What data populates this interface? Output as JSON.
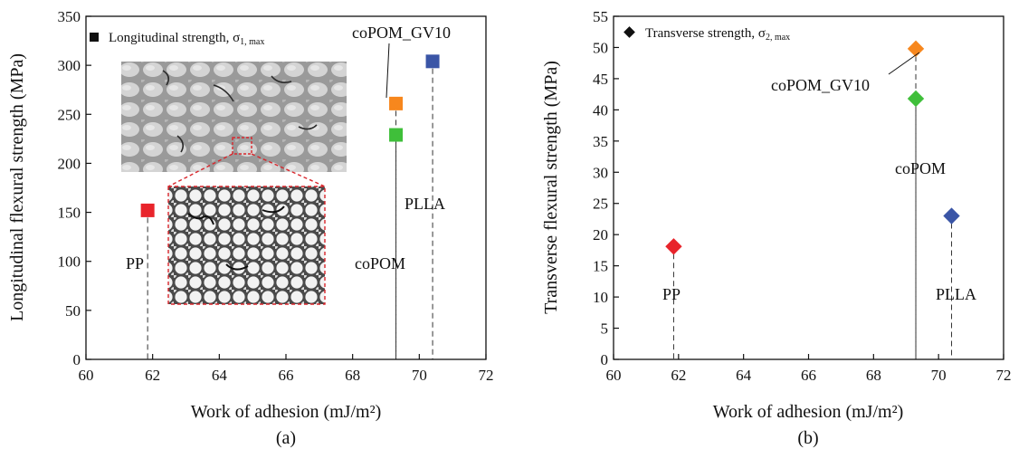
{
  "chart_data": [
    {
      "type": "scatter",
      "caption": "(a)",
      "xlabel": "Work of adhesion (mJ/m²)",
      "ylabel": "Longitudinal flexural strength (MPa)",
      "xlim": [
        60,
        72
      ],
      "ylim": [
        0,
        350
      ],
      "xticks": [
        60,
        62,
        64,
        66,
        68,
        70,
        72
      ],
      "yticks": [
        0,
        50,
        100,
        150,
        200,
        250,
        300,
        350
      ],
      "legend": {
        "label": "Longitudinal strength, σ",
        "sub": "1, max",
        "placement": "top-left"
      },
      "marker": "square",
      "points": [
        {
          "name": "PP",
          "x": 61.85,
          "y": 152,
          "color": "#e8242b"
        },
        {
          "name": "coPOM",
          "x": 69.3,
          "y": 229,
          "color": "#3fbf3a"
        },
        {
          "name": "coPOM_GV10",
          "x": 69.3,
          "y": 261,
          "color": "#f7871d"
        },
        {
          "name": "PLLA",
          "x": 70.4,
          "y": 304,
          "color": "#3a55a6"
        }
      ],
      "annotations": [
        "PP",
        "coPOM",
        "coPOM_GV10",
        "PLLA"
      ],
      "inset": "micrograph"
    },
    {
      "type": "scatter",
      "caption": "(b)",
      "xlabel": "Work of adhesion (mJ/m²)",
      "ylabel": "Transverse flexural strength (MPa)",
      "xlim": [
        60,
        72
      ],
      "ylim": [
        0,
        55
      ],
      "xticks": [
        60,
        62,
        64,
        66,
        68,
        70,
        72
      ],
      "yticks": [
        0,
        5,
        10,
        15,
        20,
        25,
        30,
        35,
        40,
        45,
        50,
        55
      ],
      "legend": {
        "label": "Transverse strength, σ",
        "sub": "2, max",
        "placement": "top-left"
      },
      "marker": "diamond",
      "points": [
        {
          "name": "PP",
          "x": 61.85,
          "y": 18.1,
          "color": "#e8242b"
        },
        {
          "name": "coPOM",
          "x": 69.3,
          "y": 41.8,
          "color": "#3fbf3a"
        },
        {
          "name": "coPOM_GV10",
          "x": 69.3,
          "y": 49.8,
          "color": "#f7871d"
        },
        {
          "name": "PLLA",
          "x": 70.4,
          "y": 23.0,
          "color": "#3a55a6"
        }
      ],
      "annotations": [
        "PP",
        "coPOM",
        "coPOM_GV10",
        "PLLA"
      ]
    }
  ]
}
